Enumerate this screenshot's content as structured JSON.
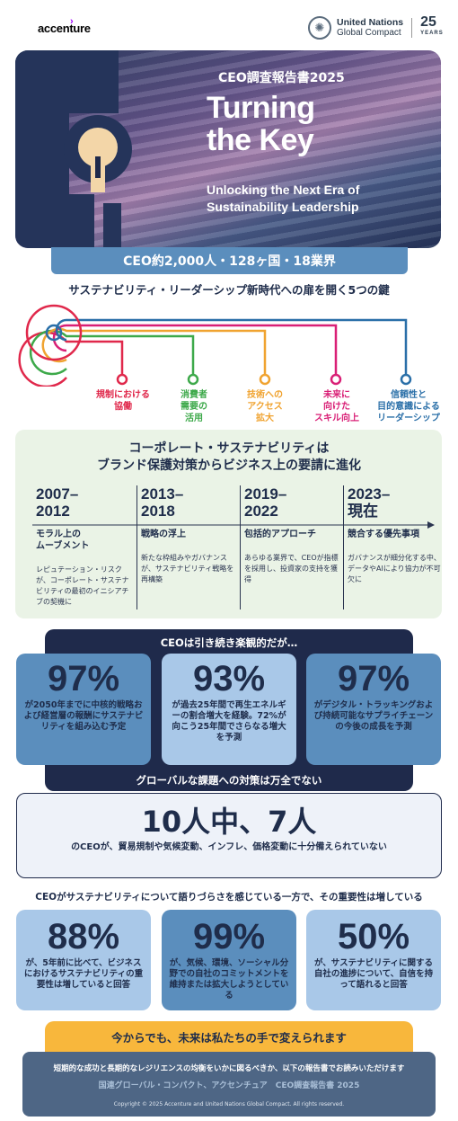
{
  "header": {
    "brand": "accenture",
    "un_line1": "United Nations",
    "un_line2": "Global Compact",
    "anniv_num": "25",
    "anniv_word": "YEARS"
  },
  "hero": {
    "subtitle": "CEO調査報告書2025",
    "title_line1": "Turning",
    "title_line2": "the Key",
    "tagline_line1": "Unlocking the Next Era of",
    "tagline_line2": "Sustainability Leadership"
  },
  "scope": "CEO約2,000人・128ヶ国・18業界",
  "keys": {
    "title": "サステナビリティ・リーダーシップ新時代への扉を開く5つの鍵",
    "items": [
      {
        "lines": [
          "規制における",
          "協働"
        ],
        "color": "#e0284b"
      },
      {
        "lines": [
          "消費者",
          "需要の",
          "活用"
        ],
        "color": "#3da94a"
      },
      {
        "lines": [
          "技術への",
          "アクセス",
          "拡大"
        ],
        "color": "#f0a330"
      },
      {
        "lines": [
          "未来に",
          "向けた",
          "スキル向上"
        ],
        "color": "#d91f76"
      },
      {
        "lines": [
          "信頼性と",
          "目的意識による",
          "リーダーシップ"
        ],
        "color": "#2a6fa8"
      }
    ]
  },
  "evolution": {
    "title_line1": "コーポレート・サステナビリティは",
    "title_line2": "ブランド保護対策からビジネス上の要請に進化",
    "periods": [
      {
        "year1": "2007–",
        "year2": "2012",
        "head": "モラル上の\nムーブメント",
        "desc": "レピュテーション・リスクが、コーポレート・サステナビリティの最初のイニシアチブの契機に"
      },
      {
        "year1": "2013–",
        "year2": "2018",
        "head": "戦略の浮上",
        "desc": "新たな枠組みやガバナンスが、サステナビリティ戦略を再構築"
      },
      {
        "year1": "2019–",
        "year2": "2022",
        "head": "包括的アプローチ",
        "desc": "あらゆる業界で、CEOが指標を採用し、投資家の支持を獲得"
      },
      {
        "year1": "2023–",
        "year2": "現在",
        "head": "競合する優先事項",
        "desc": "ガバナンスが細分化する中、データやAIにより協力が不可欠に"
      }
    ]
  },
  "optimism": {
    "title": "CEOは引き続き楽観的だが…",
    "stats": [
      {
        "value": "97%",
        "text": "が2050年までに中核的戦略および経営層の報酬にサステナビリティを組み込む予定"
      },
      {
        "value": "93%",
        "text": "が過去25年間で再生エネルギーの割合増大を経験。72%が向こう25年間でさらなる増大を予測"
      },
      {
        "value": "97%",
        "text": "がデジタル・トラッキングおよび持続可能なサプライチェーンの今後の成長を予測"
      }
    ],
    "challenge_title": "グローバルな課題への対策は万全でない"
  },
  "gap": {
    "value": "10人中、7人",
    "text": "のCEOが、貿易規制や気候変動、インフレ、価格変動に十分備えられていない"
  },
  "importance": {
    "title": "CEOがサステナビリティについて語りづらさを感じている一方で、その重要性は増している",
    "stats": [
      {
        "value": "88%",
        "text": "が、5年前に比べて、ビジネスにおけるサステナビリティの重要性は増していると回答"
      },
      {
        "value": "99%",
        "text": "が、気候、環境、ソーシャル分野での自社のコミットメントを維持または拡大しようとしている"
      },
      {
        "value": "50%",
        "text": "が、サステナビリティに関する自社の進捗について、自信を持って語れると回答"
      }
    ]
  },
  "cta": "今からでも、未来は私たちの手で変えられます",
  "footer": {
    "line1": "短期的な成功と長期的なレジリエンスの均衡をいかに図るべきか、以下の報告書でお読みいただけます",
    "line2": "国連グローバル・コンパクト、アクセンチュア　CEO調査報告書 2025",
    "copyright": "Copyright © 2025 Accenture and United Nations Global Compact. All rights reserved."
  },
  "colors": {
    "navy": "#1f2a4b",
    "blue": "#5b8ebd",
    "light_blue": "#a9c8e8",
    "orange": "#f8b73c",
    "green_bg": "#eaf3e6",
    "accent_purple": "#a100ff"
  }
}
